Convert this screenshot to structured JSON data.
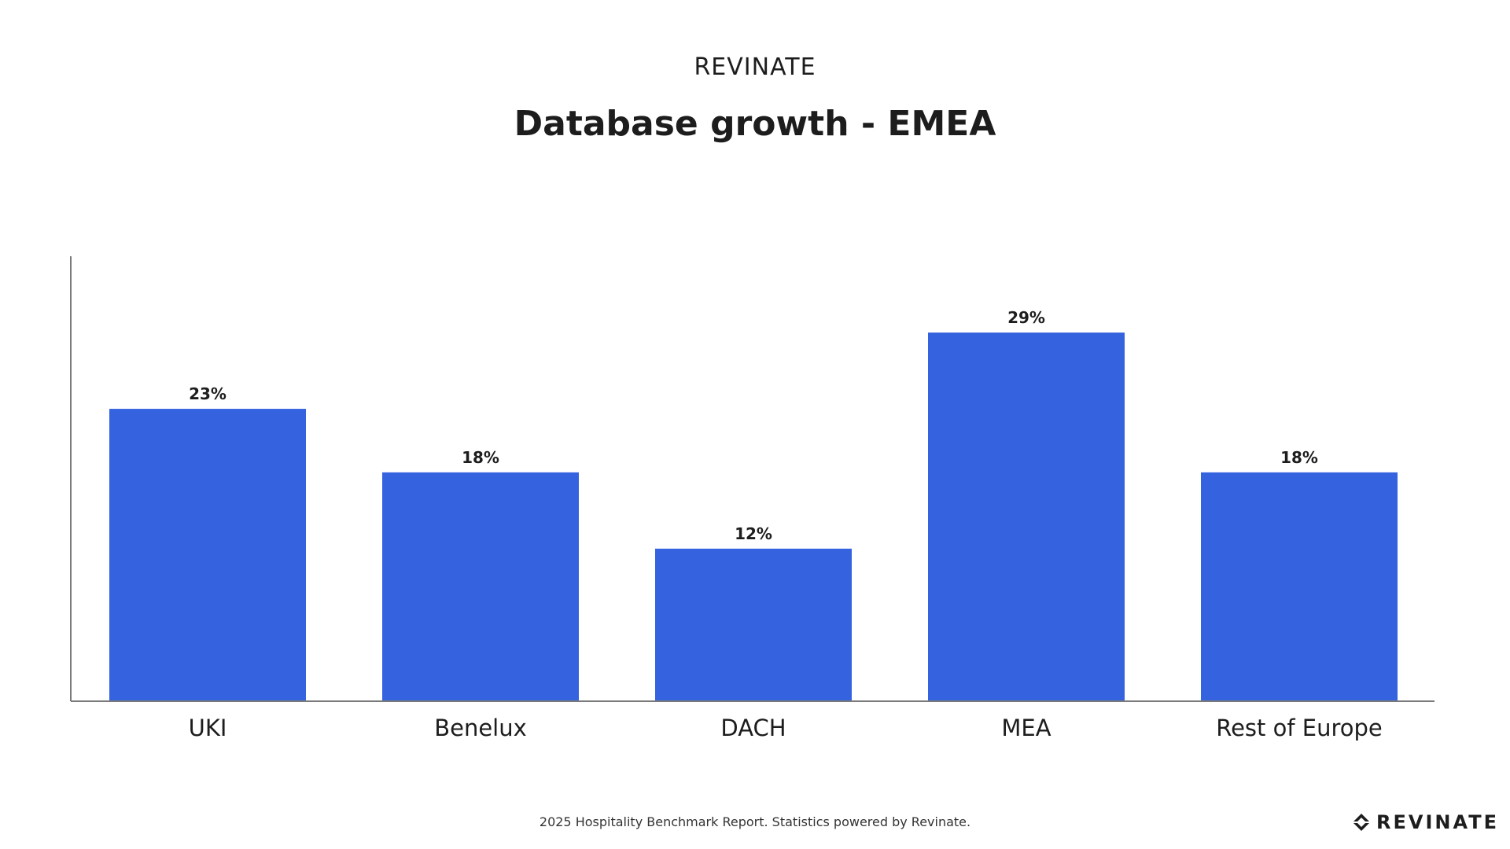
{
  "header": {
    "brand": "REVINATE"
  },
  "chart_data": {
    "type": "bar",
    "title": "Database growth - EMEA",
    "xlabel": "",
    "ylabel": "",
    "categories": [
      "UKI",
      "Benelux",
      "DACH",
      "MEA",
      "Rest of Europe"
    ],
    "values": [
      23,
      18,
      12,
      29,
      18
    ],
    "value_labels": [
      "23%",
      "18%",
      "12%",
      "29%",
      "18%"
    ],
    "ylim": [
      0,
      35
    ],
    "grid": false,
    "legend": "none",
    "bar_color": "#3563df",
    "axis_color": "#7a7a7a"
  },
  "footer": {
    "source": "2025 Hospitality Benchmark Report. Statistics powered by Revinate.",
    "logo_text": "REVINATE",
    "logo_icon": "revinate-logo-icon"
  }
}
